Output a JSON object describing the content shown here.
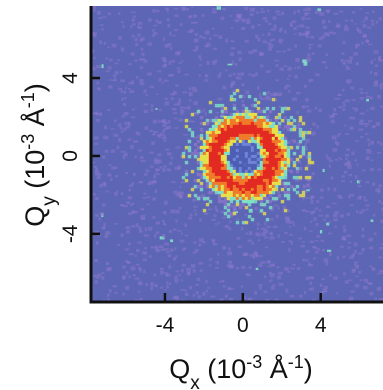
{
  "chart_data": {
    "type": "heatmap",
    "title": "",
    "xlabel": {
      "base": "Q",
      "sub": "x",
      "paren_open": " (10",
      "exp1": "-3",
      "unit": " Å",
      "exp2": "-1",
      "paren_close": ")"
    },
    "ylabel": {
      "base": "Q",
      "sub": "y",
      "paren_open": " (10",
      "exp1": "-3",
      "unit": " Å",
      "exp2": "-1",
      "paren_close": ")"
    },
    "x_ticks": [
      {
        "value": -4,
        "label": "-4"
      },
      {
        "value": 0,
        "label": "0"
      },
      {
        "value": 4,
        "label": "4"
      }
    ],
    "y_ticks": [
      {
        "value": 4,
        "label": "4"
      },
      {
        "value": 0,
        "label": "0"
      },
      {
        "value": -4,
        "label": "-4"
      }
    ],
    "xlim": [
      -7.8,
      7.2
    ],
    "ylim": [
      -7.5,
      7.7
    ],
    "grid": false,
    "colormap": {
      "background": "#5c66b5",
      "low": "#8a76c8",
      "mid": "#7fe0c6",
      "high_1": "#e8e04a",
      "high_2": "#f07a2a",
      "peak": "#e22a22",
      "center": "#4b5db4"
    },
    "features": {
      "ring_center": [
        0,
        0
      ],
      "ring_radius_inner": 0.85,
      "ring_radius_peak": 1.45,
      "ring_radius_outer": 2.3,
      "halo_radius": 3.6
    }
  }
}
